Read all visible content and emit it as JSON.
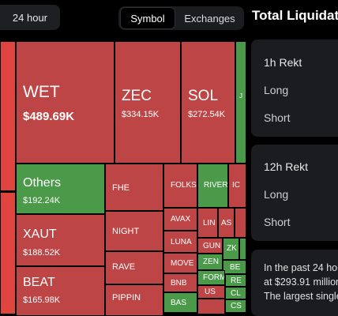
{
  "filters": {
    "time_range": "24 hour"
  },
  "view_tabs": [
    {
      "label": "Symbol",
      "active": true
    },
    {
      "label": "Exchanges",
      "active": false
    }
  ],
  "panel_title": "Total Liquidati",
  "treemap": {
    "large": [
      {
        "symbol": "WET",
        "amount": "$489.69K"
      },
      {
        "symbol": "ZEC",
        "amount": "$334.15K"
      },
      {
        "symbol": "SOL",
        "amount": "$272.54K"
      },
      {
        "symbol": "Others",
        "amount": "$192.24K"
      },
      {
        "symbol": "XAUT",
        "amount": "$188.52K"
      },
      {
        "symbol": "BEAT",
        "amount": "$165.98K"
      }
    ],
    "small": {
      "j": "J",
      "fhe": "FHE",
      "folks": "FOLKS",
      "river": "RIVER",
      "ic": "IC",
      "night": "NIGHT",
      "avax": "AVAX",
      "lin": "LIN",
      "as": "AS",
      "luna": "LUNA",
      "rave": "RAVE",
      "move": "MOVE",
      "gun": "GUN",
      "zk": "ZK",
      "be": "BE",
      "zen": "ZEN",
      "re": "RE",
      "bnb": "BNB",
      "form": "FORM",
      "cl": "CL",
      "pippin": "PIPPIN",
      "us": "US",
      "bas": "BAS",
      "cs": "CS"
    },
    "colors": {
      "loss": "#bd4545",
      "loss_bright": "#e0443e",
      "gain": "#4a9a4a"
    }
  },
  "cards": [
    {
      "title": "1h Rekt",
      "rows": [
        "Long",
        "Short"
      ]
    },
    {
      "title": "12h Rekt",
      "rows": [
        "Long",
        "Short"
      ]
    }
  ],
  "summary": {
    "line1": "In the past 24 hou",
    "line2": "at $293.91 million",
    "line3": "The largest single"
  }
}
